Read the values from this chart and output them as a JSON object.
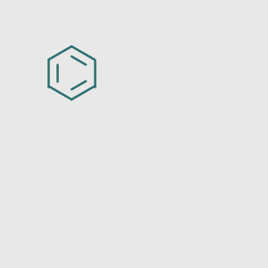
{
  "background_color": "#e8e8e8",
  "bond_color": "#2d6e6e",
  "N_color": "#0000ff",
  "O_color": "#ff0000",
  "line_width": 1.8,
  "figsize": [
    3.0,
    3.0
  ],
  "dpi": 100,
  "bl": 0.95
}
